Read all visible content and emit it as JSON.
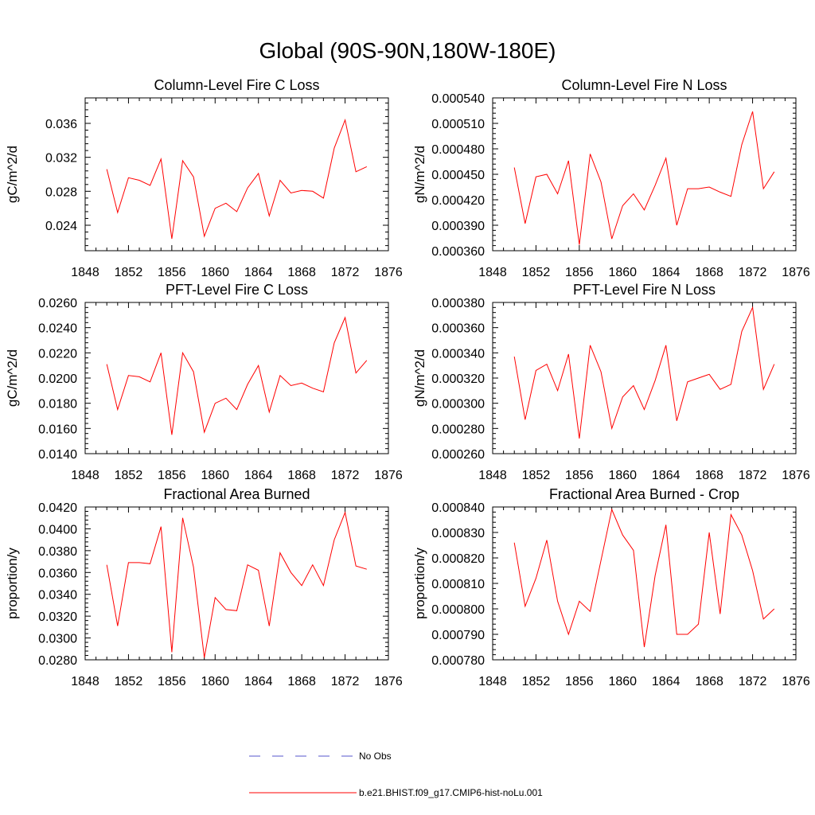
{
  "figure": {
    "title": "Global (90S-90N,180W-180E)"
  },
  "legend": {
    "entries": [
      {
        "label": "No Obs",
        "color": "#5555cc",
        "style": "dashed"
      },
      {
        "label": "b.e21.BHIST.f09_g17.CMIP6-hist-noLu.001",
        "color": "#ff0000",
        "style": "solid"
      }
    ]
  },
  "chart_data": [
    {
      "type": "line",
      "title": "Column-Level Fire C Loss",
      "ylabel": "gC/m^2/d",
      "xlim": [
        1848,
        1876
      ],
      "ylim": [
        0.021,
        0.039
      ],
      "xticks": [
        1848,
        1852,
        1856,
        1860,
        1864,
        1868,
        1872,
        1876
      ],
      "xtick_labels": [
        "1848",
        "1852",
        "1856",
        "1860",
        "1864",
        "1868",
        "1872",
        "1876"
      ],
      "yticks": [
        0.024,
        0.028,
        0.032,
        0.036
      ],
      "ytick_labels": [
        "0.024",
        "0.028",
        "0.032",
        "0.036"
      ],
      "x": [
        1850,
        1851,
        1852,
        1853,
        1854,
        1855,
        1856,
        1857,
        1858,
        1859,
        1860,
        1861,
        1862,
        1863,
        1864,
        1865,
        1866,
        1867,
        1868,
        1869,
        1870,
        1871,
        1872,
        1873,
        1874
      ],
      "series": [
        {
          "name": "b.e21.BHIST.f09_g17.CMIP6-hist-noLu.001",
          "color": "#ff0000",
          "values": [
            0.0306,
            0.0255,
            0.0296,
            0.0293,
            0.0287,
            0.0318,
            0.0224,
            0.0316,
            0.0297,
            0.0227,
            0.026,
            0.0266,
            0.0256,
            0.0284,
            0.0301,
            0.0251,
            0.0293,
            0.0278,
            0.0281,
            0.028,
            0.0272,
            0.0331,
            0.0364,
            0.0303,
            0.0309
          ]
        }
      ]
    },
    {
      "type": "line",
      "title": "Column-Level Fire N Loss",
      "ylabel": "gN/m^2/d",
      "xlim": [
        1848,
        1876
      ],
      "ylim": [
        0.00036,
        0.00054
      ],
      "xticks": [
        1848,
        1852,
        1856,
        1860,
        1864,
        1868,
        1872,
        1876
      ],
      "xtick_labels": [
        "1848",
        "1852",
        "1856",
        "1860",
        "1864",
        "1868",
        "1872",
        "1876"
      ],
      "yticks": [
        0.00036,
        0.00039,
        0.00042,
        0.00045,
        0.00048,
        0.00051,
        0.00054
      ],
      "ytick_labels": [
        "0.000360",
        "0.000390",
        "0.000420",
        "0.000450",
        "0.000480",
        "0.000510",
        "0.000540"
      ],
      "x": [
        1850,
        1851,
        1852,
        1853,
        1854,
        1855,
        1856,
        1857,
        1858,
        1859,
        1860,
        1861,
        1862,
        1863,
        1864,
        1865,
        1866,
        1867,
        1868,
        1869,
        1870,
        1871,
        1872,
        1873,
        1874
      ],
      "series": [
        {
          "name": "b.e21.BHIST.f09_g17.CMIP6-hist-noLu.001",
          "color": "#ff0000",
          "values": [
            0.000458,
            0.000392,
            0.000447,
            0.00045,
            0.000427,
            0.000466,
            0.000367,
            0.000474,
            0.000441,
            0.000374,
            0.000413,
            0.000427,
            0.000408,
            0.000437,
            0.000469,
            0.00039,
            0.000433,
            0.000433,
            0.000435,
            0.000429,
            0.000424,
            0.000485,
            0.000524,
            0.000433,
            0.000453
          ]
        }
      ]
    },
    {
      "type": "line",
      "title": "PFT-Level Fire C Loss",
      "ylabel": "gC/m^2/d",
      "xlim": [
        1848,
        1876
      ],
      "ylim": [
        0.014,
        0.026
      ],
      "xticks": [
        1848,
        1852,
        1856,
        1860,
        1864,
        1868,
        1872,
        1876
      ],
      "xtick_labels": [
        "1848",
        "1852",
        "1856",
        "1860",
        "1864",
        "1868",
        "1872",
        "1876"
      ],
      "yticks": [
        0.014,
        0.016,
        0.018,
        0.02,
        0.022,
        0.024,
        0.026
      ],
      "ytick_labels": [
        "0.0140",
        "0.0160",
        "0.0180",
        "0.0200",
        "0.0220",
        "0.0240",
        "0.0260"
      ],
      "x": [
        1850,
        1851,
        1852,
        1853,
        1854,
        1855,
        1856,
        1857,
        1858,
        1859,
        1860,
        1861,
        1862,
        1863,
        1864,
        1865,
        1866,
        1867,
        1868,
        1869,
        1870,
        1871,
        1872,
        1873,
        1874
      ],
      "series": [
        {
          "name": "b.e21.BHIST.f09_g17.CMIP6-hist-noLu.001",
          "color": "#ff0000",
          "values": [
            0.0211,
            0.0175,
            0.0202,
            0.0201,
            0.0197,
            0.022,
            0.0155,
            0.022,
            0.0205,
            0.0157,
            0.018,
            0.0184,
            0.0175,
            0.0195,
            0.021,
            0.0173,
            0.0202,
            0.0194,
            0.0196,
            0.0192,
            0.0189,
            0.0228,
            0.0248,
            0.0204,
            0.0214
          ]
        }
      ]
    },
    {
      "type": "line",
      "title": "PFT-Level Fire N Loss",
      "ylabel": "gN/m^2/d",
      "xlim": [
        1848,
        1876
      ],
      "ylim": [
        0.00026,
        0.00038
      ],
      "xticks": [
        1848,
        1852,
        1856,
        1860,
        1864,
        1868,
        1872,
        1876
      ],
      "xtick_labels": [
        "1848",
        "1852",
        "1856",
        "1860",
        "1864",
        "1868",
        "1872",
        "1876"
      ],
      "yticks": [
        0.00026,
        0.00028,
        0.0003,
        0.00032,
        0.00034,
        0.00036,
        0.00038
      ],
      "ytick_labels": [
        "0.000260",
        "0.000280",
        "0.000300",
        "0.000320",
        "0.000340",
        "0.000360",
        "0.000380"
      ],
      "x": [
        1850,
        1851,
        1852,
        1853,
        1854,
        1855,
        1856,
        1857,
        1858,
        1859,
        1860,
        1861,
        1862,
        1863,
        1864,
        1865,
        1866,
        1867,
        1868,
        1869,
        1870,
        1871,
        1872,
        1873,
        1874
      ],
      "series": [
        {
          "name": "b.e21.BHIST.f09_g17.CMIP6-hist-noLu.001",
          "color": "#ff0000",
          "values": [
            0.000337,
            0.000287,
            0.000326,
            0.000331,
            0.00031,
            0.000339,
            0.000272,
            0.000346,
            0.000325,
            0.00028,
            0.000305,
            0.000314,
            0.000295,
            0.000318,
            0.000346,
            0.000286,
            0.000317,
            0.00032,
            0.000323,
            0.000311,
            0.000315,
            0.000357,
            0.000376,
            0.000311,
            0.000331
          ]
        }
      ]
    },
    {
      "type": "line",
      "title": "Fractional Area Burned",
      "ylabel": "proportion/y",
      "xlim": [
        1848,
        1876
      ],
      "ylim": [
        0.028,
        0.042
      ],
      "xticks": [
        1848,
        1852,
        1856,
        1860,
        1864,
        1868,
        1872,
        1876
      ],
      "xtick_labels": [
        "1848",
        "1852",
        "1856",
        "1860",
        "1864",
        "1868",
        "1872",
        "1876"
      ],
      "yticks": [
        0.028,
        0.03,
        0.032,
        0.034,
        0.036,
        0.038,
        0.04,
        0.042
      ],
      "ytick_labels": [
        "0.0280",
        "0.0300",
        "0.0320",
        "0.0340",
        "0.0360",
        "0.0380",
        "0.0400",
        "0.0420"
      ],
      "x": [
        1850,
        1851,
        1852,
        1853,
        1854,
        1855,
        1856,
        1857,
        1858,
        1859,
        1860,
        1861,
        1862,
        1863,
        1864,
        1865,
        1866,
        1867,
        1868,
        1869,
        1870,
        1871,
        1872,
        1873,
        1874
      ],
      "series": [
        {
          "name": "b.e21.BHIST.f09_g17.CMIP6-hist-noLu.001",
          "color": "#ff0000",
          "values": [
            0.0367,
            0.0311,
            0.0369,
            0.0369,
            0.0368,
            0.0402,
            0.0287,
            0.041,
            0.0365,
            0.0282,
            0.0337,
            0.0326,
            0.0325,
            0.0367,
            0.0362,
            0.0311,
            0.0378,
            0.036,
            0.0348,
            0.0367,
            0.0348,
            0.039,
            0.0415,
            0.0366,
            0.0363
          ]
        }
      ]
    },
    {
      "type": "line",
      "title": "Fractional Area Burned - Crop",
      "ylabel": "proportion/y",
      "xlim": [
        1848,
        1876
      ],
      "ylim": [
        0.00078,
        0.00084
      ],
      "xticks": [
        1848,
        1852,
        1856,
        1860,
        1864,
        1868,
        1872,
        1876
      ],
      "xtick_labels": [
        "1848",
        "1852",
        "1856",
        "1860",
        "1864",
        "1868",
        "1872",
        "1876"
      ],
      "yticks": [
        0.00078,
        0.00079,
        0.0008,
        0.00081,
        0.00082,
        0.00083,
        0.00084
      ],
      "ytick_labels": [
        "0.000780",
        "0.000790",
        "0.000800",
        "0.000810",
        "0.000820",
        "0.000830",
        "0.000840"
      ],
      "x": [
        1850,
        1851,
        1852,
        1853,
        1854,
        1855,
        1856,
        1857,
        1858,
        1859,
        1860,
        1861,
        1862,
        1863,
        1864,
        1865,
        1866,
        1867,
        1868,
        1869,
        1870,
        1871,
        1872,
        1873,
        1874
      ],
      "series": [
        {
          "name": "b.e21.BHIST.f09_g17.CMIP6-hist-noLu.001",
          "color": "#ff0000",
          "values": [
            0.000826,
            0.000801,
            0.000812,
            0.000827,
            0.000803,
            0.00079,
            0.000803,
            0.000799,
            0.000819,
            0.000839,
            0.000829,
            0.000823,
            0.000785,
            0.000813,
            0.000833,
            0.00079,
            0.00079,
            0.000794,
            0.00083,
            0.000798,
            0.000837,
            0.000829,
            0.000815,
            0.000796,
            0.0008
          ]
        }
      ]
    }
  ]
}
